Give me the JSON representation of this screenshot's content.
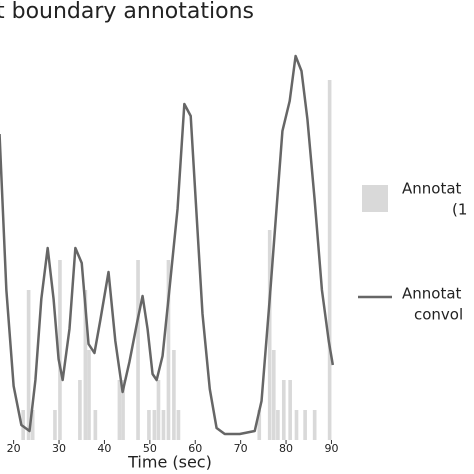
{
  "chart_data": {
    "type": "combo",
    "title": "t boundary annotations",
    "x_label": "Time (sec)",
    "xlim": [
      17,
      91
    ],
    "xticks": [
      20,
      30,
      40,
      50,
      60,
      70,
      80,
      90
    ],
    "ylim": [
      0,
      13
    ],
    "series": [
      {
        "type": "bar",
        "name": [
          "Annotat",
          "(1"
        ],
        "color": "#d9d9d9",
        "bar_width": 0.8,
        "x": [
          22.1,
          23.3,
          24.2,
          29.1,
          30.2,
          34.6,
          35.8,
          36.6,
          38.0,
          43.3,
          44.1,
          47.4,
          49.8,
          51.0,
          51.9,
          53.0,
          54.1,
          55.3,
          56.3,
          74.1,
          76.4,
          77.3,
          78.2,
          79.5,
          80.9,
          82.3,
          84.2,
          86.3,
          89.6
        ],
        "values": [
          1,
          5,
          1,
          1,
          6,
          2,
          5,
          3,
          1,
          2,
          2,
          6,
          1,
          1,
          2,
          1,
          6,
          3,
          1,
          1,
          7,
          3,
          1,
          2,
          2,
          1,
          1,
          1,
          12
        ]
      },
      {
        "type": "line",
        "name": [
          "Annotat",
          "convol"
        ],
        "color": "#666666",
        "x": [
          16.9,
          18.4,
          20,
          21.7,
          23.5,
          24.8,
          26.1,
          27.5,
          28.8,
          29.9,
          30.8,
          32.3,
          33.6,
          35,
          36.5,
          37.8,
          39.1,
          40.9,
          42.4,
          44,
          45.5,
          47.3,
          48.4,
          49.5,
          50.6,
          51.5,
          52.8,
          54.3,
          56.1,
          57.6,
          59,
          60.1,
          61.6,
          63.2,
          64.7,
          66.5,
          69.8,
          73.1,
          74.6,
          76.4,
          77.9,
          79.2,
          80.8,
          82.1,
          83.4,
          84.7,
          86.3,
          87.9,
          89.4,
          90.3
        ],
        "values": [
          10.2,
          5,
          1.8,
          0.5,
          0.3,
          2,
          4.7,
          6.4,
          4.7,
          2.7,
          2,
          3.7,
          6.4,
          5.9,
          3.2,
          2.9,
          4,
          5.6,
          3.3,
          1.6,
          2.6,
          4,
          4.8,
          3.7,
          2.2,
          2,
          2.8,
          5,
          7.7,
          11.2,
          10.8,
          8,
          4.2,
          1.7,
          0.4,
          0.2,
          0.2,
          0.3,
          1.3,
          4.7,
          7.7,
          10.3,
          11.3,
          12.8,
          12.3,
          10.7,
          8,
          5,
          3.3,
          2.5
        ]
      }
    ]
  }
}
